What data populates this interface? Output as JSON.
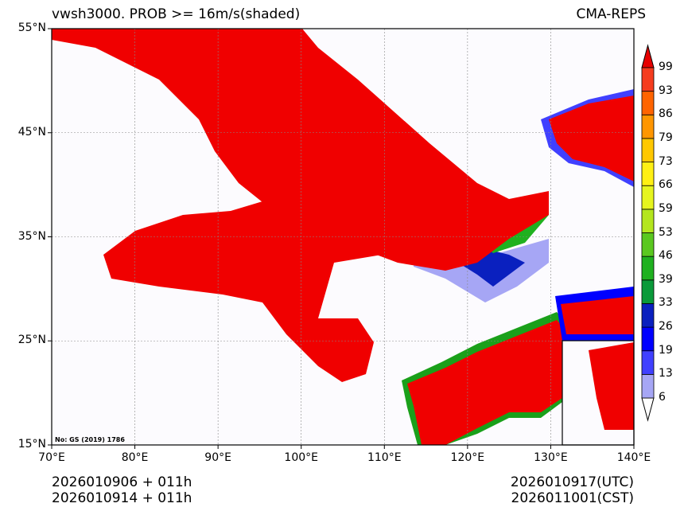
{
  "header": {
    "title_left": "vwsh3000. PROB >= 16m/s(shaded)",
    "title_right": "CMA-REPS"
  },
  "map": {
    "lat_labels": [
      "55°N",
      "45°N",
      "35°N",
      "25°N",
      "15°N"
    ],
    "lon_labels": [
      "70°E",
      "80°E",
      "90°E",
      "100°E",
      "110°E",
      "120°E",
      "130°E",
      "140°E"
    ],
    "lat_values": [
      55,
      45,
      35,
      25,
      15
    ],
    "lon_values": [
      70,
      80,
      90,
      100,
      110,
      120,
      130,
      140
    ],
    "lon_range": [
      70,
      140
    ],
    "lat_range": [
      15,
      55
    ],
    "approval_no": "No: GS (2019) 1786",
    "shade_color": "#f00000",
    "land_border_color": "#000000",
    "water_color": "#1aa3d9",
    "background_color": "#fcfbfe"
  },
  "colorbar": {
    "levels": [
      "6",
      "13",
      "19",
      "26",
      "33",
      "39",
      "46",
      "53",
      "59",
      "66",
      "73",
      "79",
      "86",
      "93",
      "99"
    ],
    "colors": [
      "#a6a6f5",
      "#4040ff",
      "#0000ff",
      "#0a20bf",
      "#0a9a3a",
      "#1fb11f",
      "#5ac81f",
      "#b4e61e",
      "#e6f51e",
      "#fff014",
      "#ffc800",
      "#ff9600",
      "#ff6400",
      "#f53c1e"
    ],
    "over_color": "#e60000",
    "under_color": "#ffffff"
  },
  "footer": {
    "init_utc": "2026010906  +  011h",
    "init_cst": "2026010914  +  011h",
    "valid_utc": "2026010917(UTC)",
    "valid_cst": "2026011001(CST)"
  }
}
